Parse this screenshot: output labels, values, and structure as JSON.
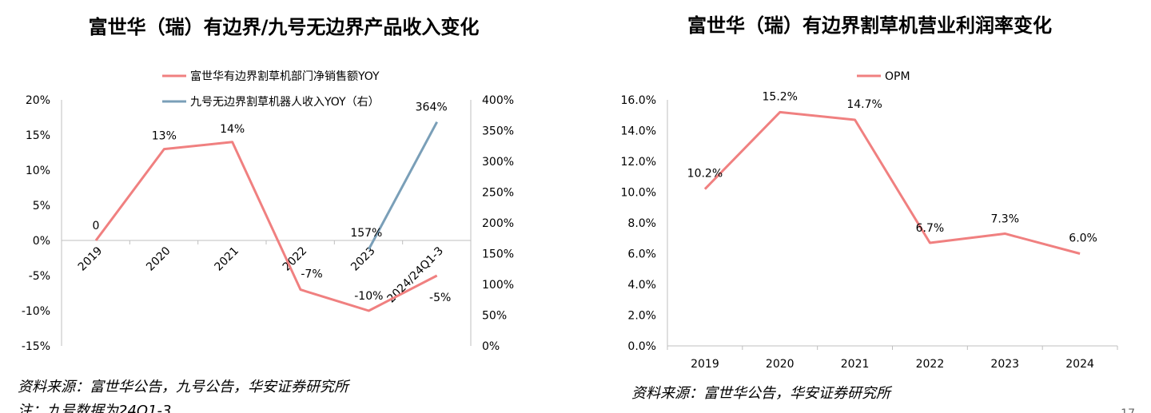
{
  "left_source": "资料来源：富世华公告，九号公告，华安证券研究所",
  "left_note": "注：九号数据为24Q1-3",
  "right_source": "资料来源：富世华公告，华安证券研究所",
  "page_number": "17",
  "chart_data": [
    {
      "type": "line",
      "title": "富世华（瑞）有边界/九号无边界产品收入变化",
      "categories": [
        "2019",
        "2020",
        "2021",
        "2022",
        "2023",
        "2024/24Q1-3"
      ],
      "ylim": [
        -15,
        20
      ],
      "y_ticks": [
        "20%",
        "15%",
        "10%",
        "5%",
        "0%",
        "-5%",
        "-10%",
        "-15%"
      ],
      "y2lim": [
        0,
        400
      ],
      "y2_ticks": [
        "400%",
        "350%",
        "300%",
        "250%",
        "200%",
        "150%",
        "100%",
        "50%",
        "0%"
      ],
      "legend_position": "top",
      "series": [
        {
          "name": "富世华有边界割草机部门净销售额YOY",
          "axis": "left",
          "color": "#f08080",
          "values": [
            0,
            13,
            14,
            -7,
            -10,
            -5
          ],
          "labels": [
            "0",
            "13%",
            "14%",
            "-7%",
            "-10%",
            "-5%"
          ]
        },
        {
          "name": "九号无边界割草机器人收入YOY（右）",
          "axis": "right",
          "color": "#7a9fb8",
          "values": [
            null,
            null,
            null,
            null,
            157,
            364
          ],
          "labels": [
            "",
            "",
            "",
            "",
            "157%",
            "364%"
          ]
        }
      ]
    },
    {
      "type": "line",
      "title": "富世华（瑞）有边界割草机营业利润率变化",
      "categories": [
        "2019",
        "2020",
        "2021",
        "2022",
        "2023",
        "2024"
      ],
      "ylim": [
        0,
        16
      ],
      "y_ticks": [
        "16.0%",
        "14.0%",
        "12.0%",
        "10.0%",
        "8.0%",
        "6.0%",
        "4.0%",
        "2.0%",
        "0.0%"
      ],
      "legend_position": "top",
      "series": [
        {
          "name": "OPM",
          "color": "#f08080",
          "values": [
            10.2,
            15.2,
            14.7,
            6.7,
            7.3,
            6.0
          ],
          "labels": [
            "10.2%",
            "15.2%",
            "14.7%",
            "6.7%",
            "7.3%",
            "6.0%"
          ]
        }
      ]
    }
  ]
}
